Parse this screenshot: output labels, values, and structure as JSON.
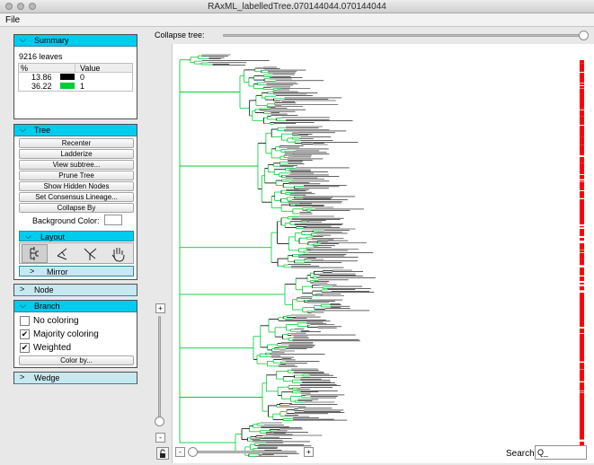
{
  "window": {
    "title": "RAxML_labelledTree.070144044.070144044"
  },
  "menu": {
    "file": "File"
  },
  "summary": {
    "header": "Summary",
    "leaves": "9216 leaves",
    "col_pct": "%",
    "col_value": "Value",
    "rows": [
      {
        "pct": "13.86",
        "value": "0",
        "color": "#000000"
      },
      {
        "pct": "36.22",
        "value": "1",
        "color": "#00cc33"
      }
    ]
  },
  "tree_panel": {
    "header": "Tree",
    "buttons": [
      "Recenter",
      "Ladderize",
      "View subtree...",
      "Prune Tree",
      "Show Hidden Nodes",
      "Set Consensus Lineage...",
      "Collapse By"
    ],
    "background_label": "Background Color:",
    "layout_header": "Layout",
    "layout_icons": [
      "rectangular-layout-icon",
      "circular-layout-icon",
      "radial-layout-icon",
      "pan-hand-icon"
    ],
    "mirror_header": "Mirror"
  },
  "node_panel": {
    "header": "Node"
  },
  "branch_panel": {
    "header": "Branch",
    "options": [
      {
        "label": "No coloring",
        "checked": false
      },
      {
        "label": "Majority coloring",
        "checked": true
      },
      {
        "label": "Weighted",
        "checked": true
      }
    ],
    "color_by": "Color by..."
  },
  "wedge_panel": {
    "header": "Wedge"
  },
  "canvas": {
    "collapse_label": "Collapse tree:",
    "search_label": "Search:",
    "search_value": "Q_",
    "zoom_in": "+",
    "zoom_out": "-",
    "colors": {
      "green": "#00cc33",
      "black": "#000000",
      "red": "#ff0000",
      "accent": "#00ccee"
    }
  }
}
